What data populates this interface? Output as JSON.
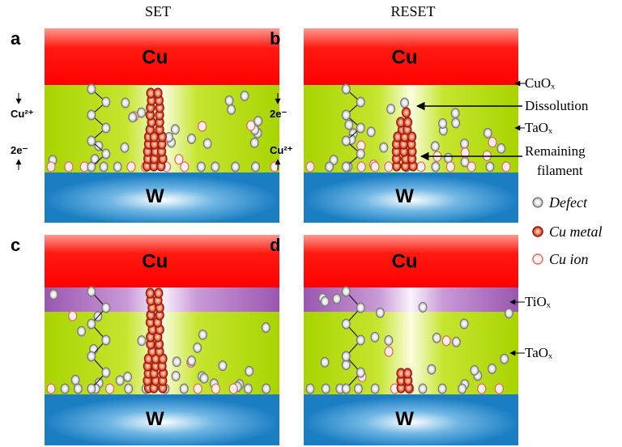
{
  "column_headers": [
    "SET",
    "RESET"
  ],
  "panels": [
    {
      "label": "a",
      "top": "Cu",
      "bottom": "W",
      "upper_flow": "Cu²⁺",
      "lower_flow": "2e⁻"
    },
    {
      "label": "b",
      "top": "Cu",
      "bottom": "W",
      "upper_flow": "2e⁻",
      "lower_flow": "Cu²⁺"
    },
    {
      "label": "c",
      "top": "Cu",
      "bottom": "W"
    },
    {
      "label": "d",
      "top": "Cu",
      "bottom": "W"
    }
  ],
  "annotations": {
    "cuox": "CuOₓ",
    "dissolution": "Dissolution",
    "taox_top": "TaOₓ",
    "remaining": [
      "Remaining",
      "filament"
    ],
    "tiox": "TiOₓ",
    "taox_bottom": "TaOₓ"
  },
  "legend": [
    "Defect",
    "Cu metal",
    "Cu ion"
  ]
}
